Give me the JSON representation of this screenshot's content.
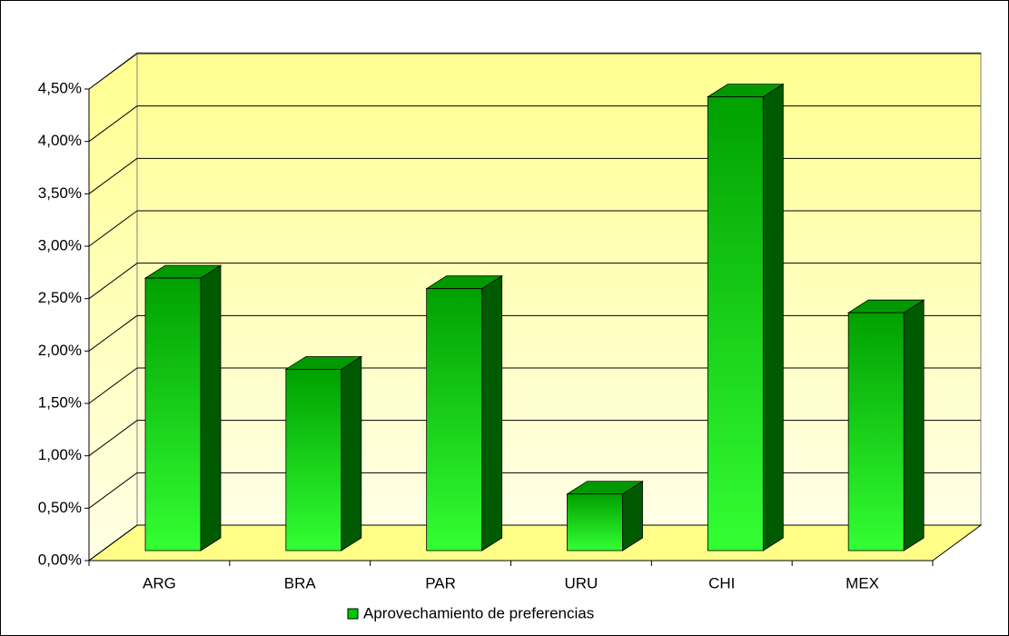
{
  "chart_data": {
    "type": "bar3d",
    "categories": [
      "ARG",
      "BRA",
      "PAR",
      "URU",
      "CHI",
      "MEX"
    ],
    "series": [
      {
        "name": "Aprovechamiento de preferencias",
        "color": "#00c800",
        "values": [
          2.6,
          1.73,
          2.5,
          0.54,
          4.33,
          2.27
        ]
      }
    ],
    "ylim": [
      0,
      4.5
    ],
    "yticks": [
      {
        "value": 0,
        "label": "0,00%"
      },
      {
        "value": 0.5,
        "label": "0,50%"
      },
      {
        "value": 1,
        "label": "1,00%"
      },
      {
        "value": 1.5,
        "label": "1,50%"
      },
      {
        "value": 2,
        "label": "2,00%"
      },
      {
        "value": 2.5,
        "label": "2,50%"
      },
      {
        "value": 3,
        "label": "3,00%"
      },
      {
        "value": 3.5,
        "label": "3,50%"
      },
      {
        "value": 4,
        "label": "4,00%"
      },
      {
        "value": 4.5,
        "label": "4,50%"
      }
    ],
    "grid": true
  }
}
